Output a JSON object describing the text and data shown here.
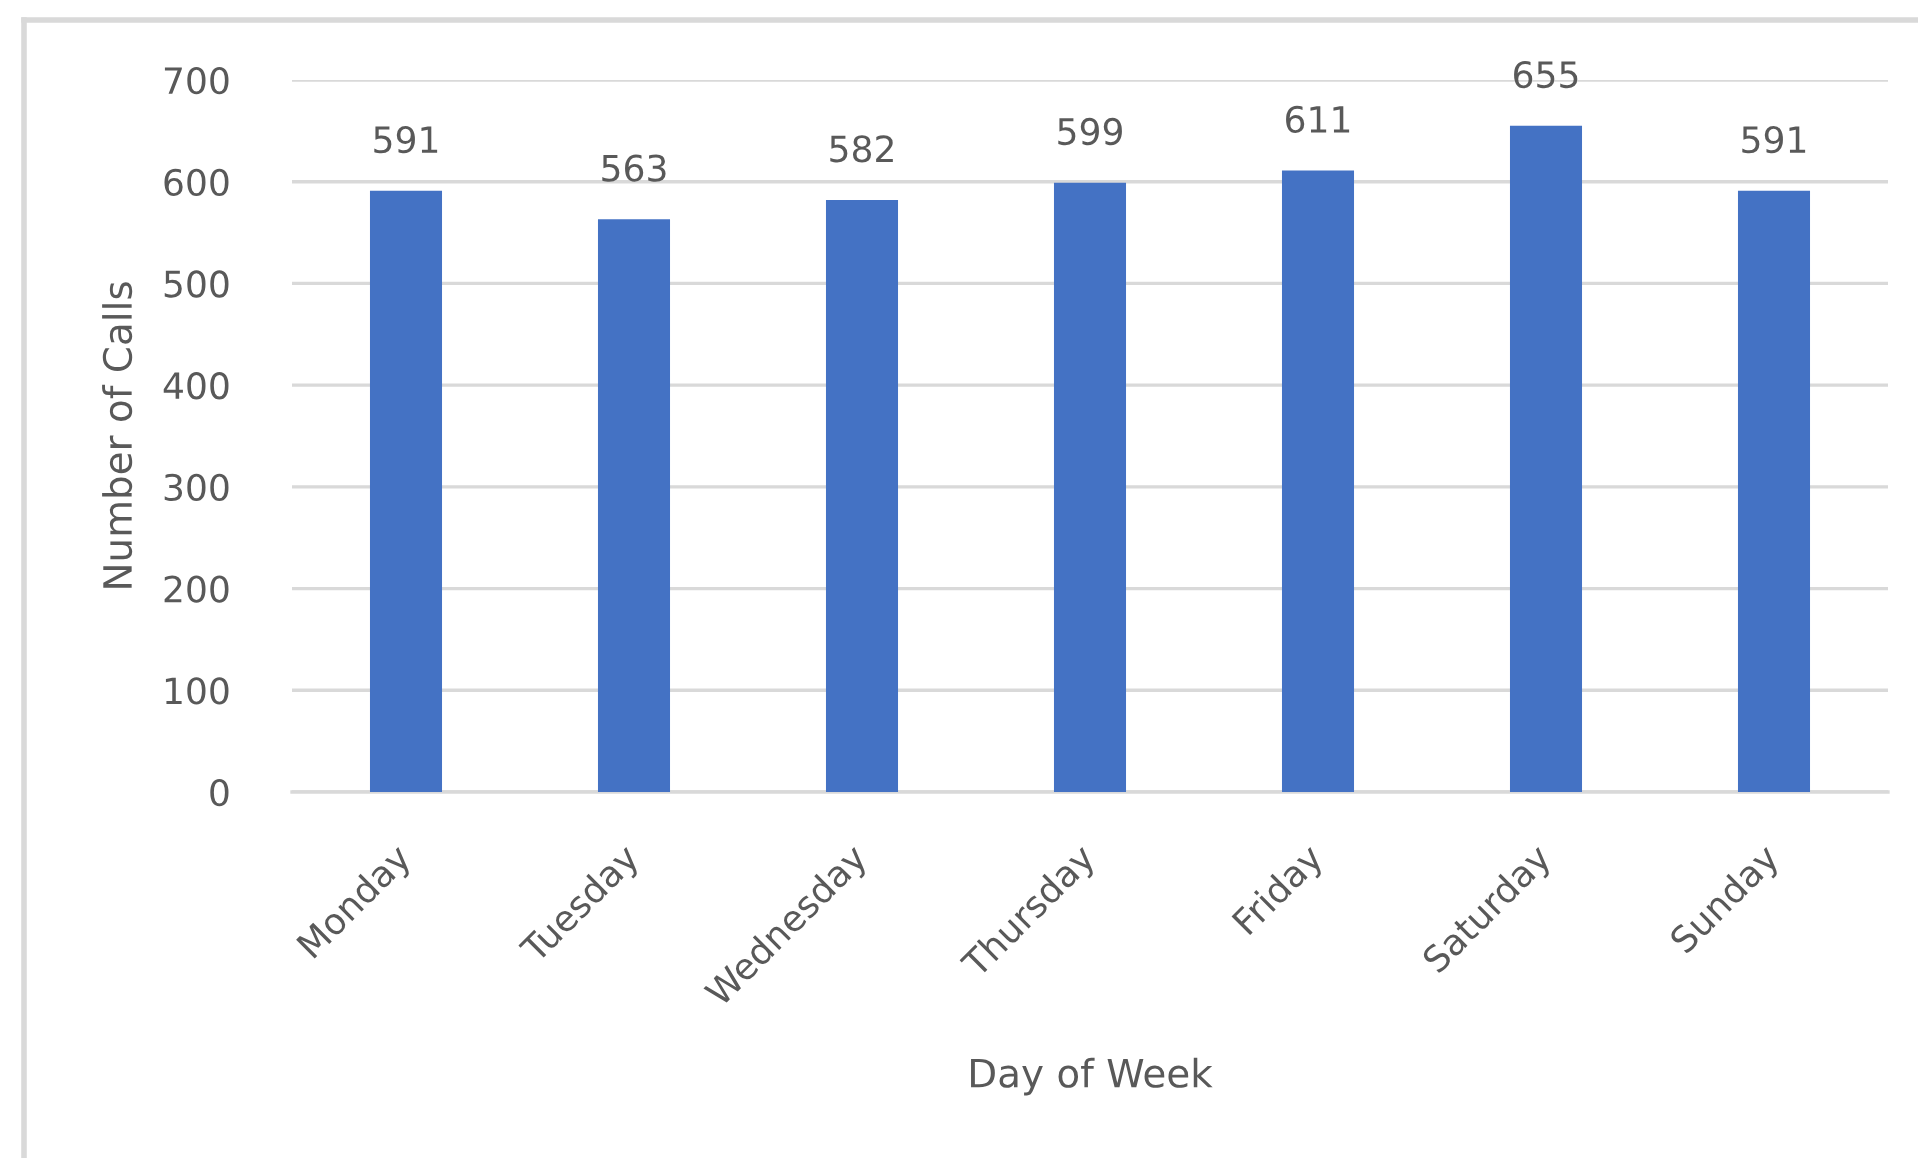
{
  "chart_data": {
    "type": "bar",
    "categories": [
      "Monday",
      "Tuesday",
      "Wednesday",
      "Thursday",
      "Friday",
      "Saturday",
      "Sunday"
    ],
    "values": [
      591,
      563,
      582,
      599,
      611,
      655,
      591
    ],
    "color": "#4472c4",
    "xlabel": "Day of Week",
    "ylabel": "Number of Calls",
    "ylim": [
      0,
      700
    ],
    "yticks": [
      0,
      100,
      200,
      300,
      400,
      500,
      600,
      700
    ],
    "grid": "y",
    "data_labels": true
  }
}
